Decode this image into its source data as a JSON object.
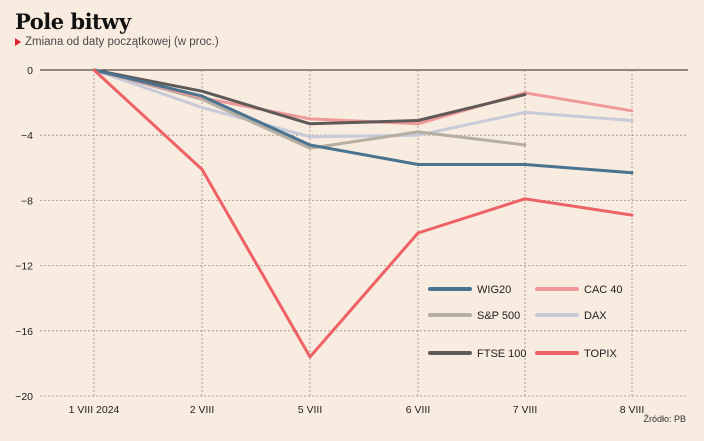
{
  "header": {
    "title": "Pole bitwy",
    "subtitle": "Zmiana od daty początkowej (w proc.)"
  },
  "footer": {
    "source": "Źródło: PB"
  },
  "colors": {
    "marker": "#e0202a",
    "grid": "#a08e80",
    "zero_line": "#222222"
  },
  "chart_data": {
    "type": "line",
    "title": "Pole bitwy",
    "subtitle": "Zmiana od daty początkowej (w proc.)",
    "xlabel": "",
    "ylabel": "",
    "categories": [
      "1 VIII 2024",
      "2 VIII",
      "5 VIII",
      "6 VIII",
      "7 VIII",
      "8 VIII"
    ],
    "y_ticks": [
      0,
      -4,
      -8,
      -12,
      -16,
      -20
    ],
    "ylim": [
      -20,
      0
    ],
    "grid": true,
    "legend_position": "bottom-right",
    "series": [
      {
        "name": "WIG20",
        "color": "#4a7390",
        "values": [
          0,
          -1.6,
          -4.6,
          -5.8,
          -5.8,
          -6.3
        ]
      },
      {
        "name": "CAC 40",
        "color": "#ef9a98",
        "values": [
          0,
          -1.7,
          -3.0,
          -3.3,
          -1.4,
          -2.5
        ]
      },
      {
        "name": "S&P 500",
        "color": "#b5aea3",
        "values": [
          0,
          -1.8,
          -4.8,
          -3.8,
          -4.6,
          null
        ]
      },
      {
        "name": "DAX",
        "color": "#c7cad9",
        "values": [
          0,
          -2.3,
          -4.1,
          -4.0,
          -2.6,
          -3.1
        ]
      },
      {
        "name": "FTSE 100",
        "color": "#5f5a57",
        "values": [
          0,
          -1.3,
          -3.3,
          -3.1,
          -1.5,
          null
        ]
      },
      {
        "name": "TOPIX",
        "color": "#ee6266",
        "values": [
          0,
          -6.1,
          -17.6,
          -10.0,
          -7.9,
          -8.9
        ]
      }
    ]
  }
}
